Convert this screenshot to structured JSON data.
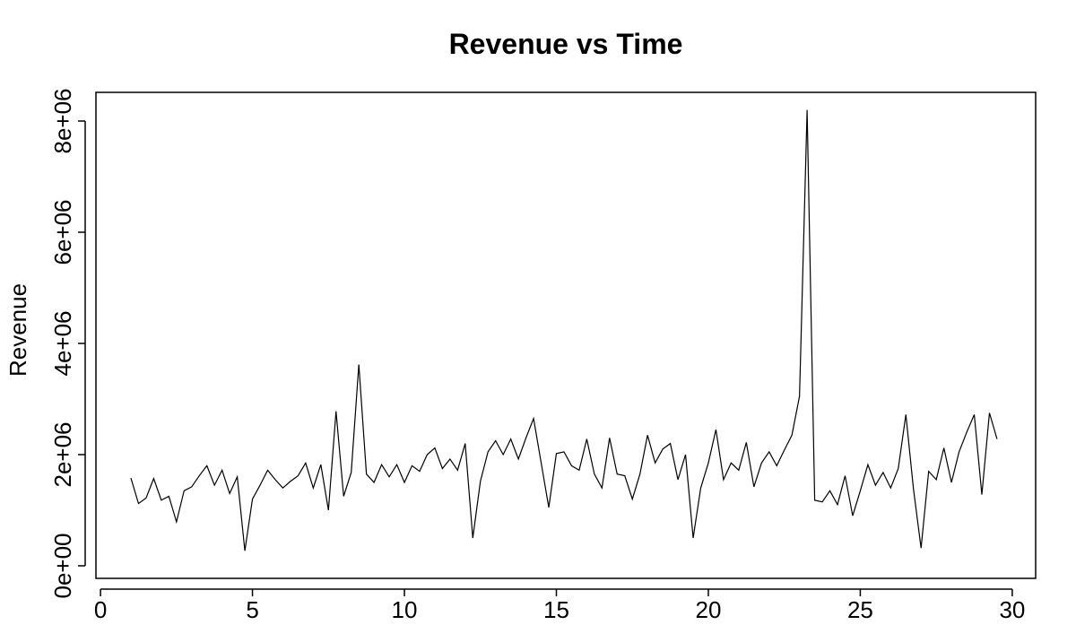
{
  "chart_data": {
    "type": "line",
    "title": "Revenue vs Time",
    "y_label": "Revenue",
    "x": [
      1.0,
      1.25,
      1.5,
      1.75,
      2.0,
      2.25,
      2.5,
      2.75,
      3.0,
      3.25,
      3.5,
      3.75,
      4.0,
      4.25,
      4.5,
      4.75,
      5.0,
      5.25,
      5.5,
      5.75,
      6.0,
      6.25,
      6.5,
      6.75,
      7.0,
      7.25,
      7.5,
      7.75,
      8.0,
      8.25,
      8.5,
      8.75,
      9.0,
      9.25,
      9.5,
      9.75,
      10.0,
      10.25,
      10.5,
      10.75,
      11.0,
      11.25,
      11.5,
      11.75,
      12.0,
      12.25,
      12.5,
      12.75,
      13.0,
      13.25,
      13.5,
      13.75,
      14.0,
      14.25,
      14.5,
      14.75,
      15.0,
      15.25,
      15.5,
      15.75,
      16.0,
      16.25,
      16.5,
      16.75,
      17.0,
      17.25,
      17.5,
      17.75,
      18.0,
      18.25,
      18.5,
      18.75,
      19.0,
      19.25,
      19.5,
      19.75,
      20.0,
      20.25,
      20.5,
      20.75,
      21.0,
      21.25,
      21.5,
      21.75,
      22.0,
      22.25,
      22.5,
      22.75,
      23.0,
      23.25,
      23.5,
      23.75,
      24.0,
      24.25,
      24.5,
      24.75,
      25.0,
      25.25,
      25.5,
      25.75,
      26.0,
      26.25,
      26.5,
      26.75,
      27.0,
      27.25,
      27.5,
      27.75,
      28.0,
      28.25,
      28.5,
      28.75,
      29.0,
      29.25,
      29.5
    ],
    "series": [
      {
        "color": "#000000",
        "values": [
          1580000,
          1120000,
          1220000,
          1570000,
          1180000,
          1250000,
          790000,
          1350000,
          1420000,
          1620000,
          1800000,
          1450000,
          1720000,
          1300000,
          1600000,
          270000,
          1200000,
          1450000,
          1720000,
          1550000,
          1400000,
          1520000,
          1620000,
          1850000,
          1400000,
          1820000,
          1000000,
          2780000,
          1250000,
          1680000,
          3620000,
          1650000,
          1500000,
          1820000,
          1600000,
          1820000,
          1500000,
          1800000,
          1700000,
          2000000,
          2120000,
          1750000,
          1920000,
          1720000,
          2200000,
          500000,
          1520000,
          2050000,
          2250000,
          2000000,
          2280000,
          1920000,
          2300000,
          2650000,
          1850000,
          1050000,
          2020000,
          2050000,
          1800000,
          1720000,
          2280000,
          1650000,
          1400000,
          2300000,
          1650000,
          1620000,
          1200000,
          1650000,
          2350000,
          1850000,
          2100000,
          2200000,
          1550000,
          2000000,
          500000,
          1400000,
          1850000,
          2450000,
          1550000,
          1850000,
          1720000,
          2220000,
          1420000,
          1850000,
          2050000,
          1800000,
          2080000,
          2350000,
          3050000,
          8200000,
          1180000,
          1150000,
          1350000,
          1100000,
          1620000,
          900000,
          1350000,
          1820000,
          1450000,
          1680000,
          1400000,
          1750000,
          2720000,
          1380000,
          320000,
          1700000,
          1550000,
          2120000,
          1500000,
          2050000,
          2400000,
          2720000,
          1280000,
          2750000,
          2280000
        ]
      }
    ],
    "xlim": [
      -0.15,
      30.77
    ],
    "ylim": [
      -226000,
      8516000
    ],
    "xticks": [
      0,
      5,
      10,
      15,
      20,
      25,
      30
    ],
    "yticks": [
      {
        "value": 0,
        "label": "0e+00"
      },
      {
        "value": 2000000,
        "label": "2e+06"
      },
      {
        "value": 4000000,
        "label": "4e+06"
      },
      {
        "value": 6000000,
        "label": "6e+06"
      },
      {
        "value": 8000000,
        "label": "8e+06"
      }
    ]
  }
}
